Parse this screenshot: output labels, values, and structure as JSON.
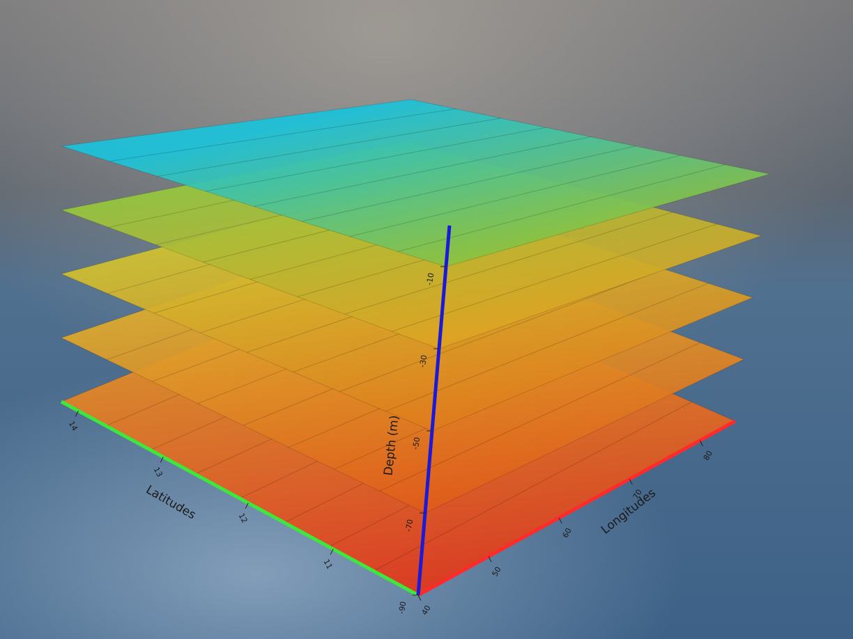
{
  "chart_data": {
    "type": "layers3d",
    "lat_label": "Latitudes",
    "lon_label": "Longitudes",
    "depth_label": "Depth (m)",
    "latlim": [
      10,
      14.2
    ],
    "latticks": [
      11,
      12,
      13,
      14
    ],
    "lonlim": [
      40,
      85
    ],
    "lonticks": [
      40,
      50,
      60,
      70,
      80
    ],
    "zlim": [
      -90,
      0
    ],
    "zticks": [
      -10,
      -30,
      -50,
      -70,
      -90
    ],
    "lat_color": "#3ee63e",
    "lon_color": "#ff2a2a",
    "depth_color": "#1a1ad8",
    "layers": [
      {
        "depth": -90,
        "colors": [
          "#e2a62a",
          "#e2341a"
        ]
      },
      {
        "depth": -70,
        "colors": [
          "#dcc032",
          "#e05a1a"
        ]
      },
      {
        "depth": -50,
        "colors": [
          "#ccce34",
          "#e07a1c"
        ]
      },
      {
        "depth": -30,
        "colors": [
          "#92c840",
          "#e0a222"
        ]
      },
      {
        "depth": -10,
        "colors": [
          "#1cc2da",
          "#8cc23e"
        ]
      }
    ]
  }
}
